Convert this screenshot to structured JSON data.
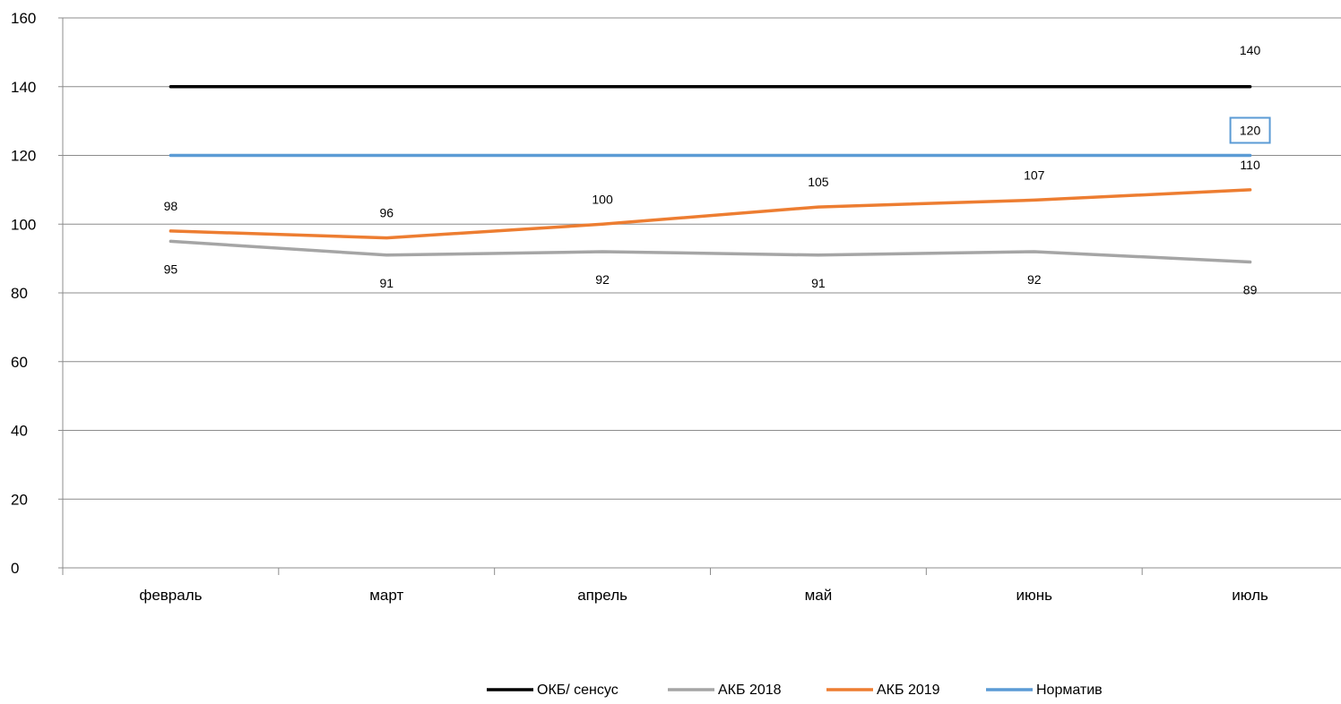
{
  "chart_data": {
    "type": "line",
    "categories": [
      "февраль",
      "март",
      "апрель",
      "май",
      "июнь",
      "июль"
    ],
    "ylim": [
      0,
      160
    ],
    "yticks": [
      0,
      20,
      40,
      60,
      80,
      100,
      120,
      140,
      160
    ],
    "grid": true,
    "legend_position": "bottom",
    "series": [
      {
        "name": "ОКБ/ сенсус",
        "color": "#000000",
        "values": [
          140,
          140,
          140,
          140,
          140,
          140
        ],
        "labels": [
          "",
          "",
          "",
          "",
          "",
          "140"
        ]
      },
      {
        "name": "АКБ 2018",
        "color": "#a5a5a5",
        "values": [
          95,
          91,
          92,
          91,
          92,
          89
        ],
        "labels": [
          "95",
          "91",
          "92",
          "91",
          "92",
          "89"
        ]
      },
      {
        "name": "АКБ 2019",
        "color": "#ed7d31",
        "values": [
          98,
          96,
          100,
          105,
          107,
          110
        ],
        "labels": [
          "98",
          "96",
          "100",
          "105",
          "107",
          "110"
        ]
      },
      {
        "name": "Норматив",
        "color": "#5b9bd5",
        "values": [
          120,
          120,
          120,
          120,
          120,
          120
        ],
        "labels": [
          "",
          "",
          "",
          "",
          "",
          "120"
        ]
      }
    ]
  }
}
